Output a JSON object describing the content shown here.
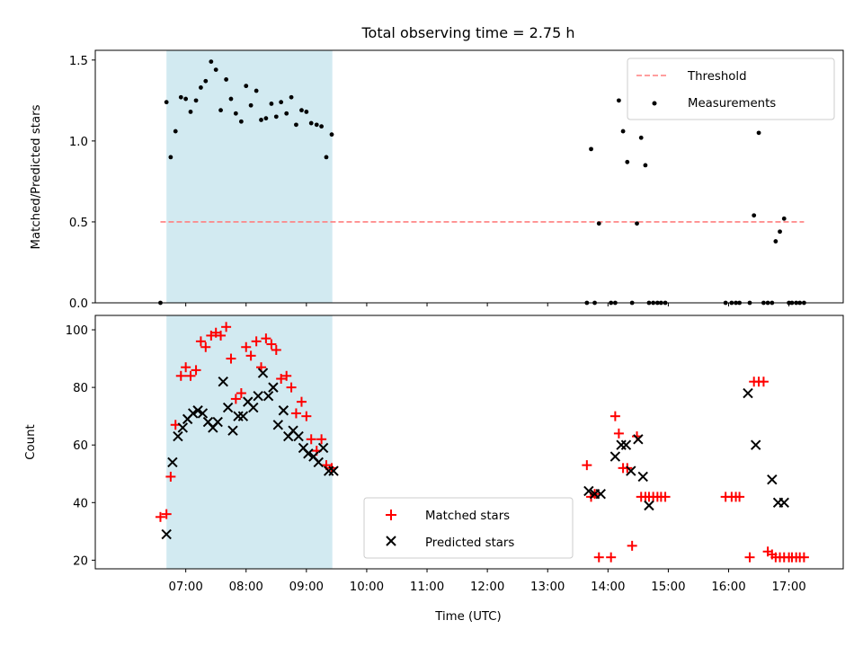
{
  "chart_data": {
    "title": "Total observing time = 2.75 h",
    "xlabel": "Time (UTC)",
    "x_unit": "hour of day (UTC)",
    "xlim": [
      5.5,
      17.9
    ],
    "x_ticks": [
      {
        "value": 7,
        "label": "07:00"
      },
      {
        "value": 8,
        "label": "08:00"
      },
      {
        "value": 9,
        "label": "09:00"
      },
      {
        "value": 10,
        "label": "10:00"
      },
      {
        "value": 11,
        "label": "11:00"
      },
      {
        "value": 12,
        "label": "12:00"
      },
      {
        "value": 13,
        "label": "13:00"
      },
      {
        "value": 14,
        "label": "14:00"
      },
      {
        "value": 15,
        "label": "15:00"
      },
      {
        "value": 16,
        "label": "16:00"
      },
      {
        "value": 17,
        "label": "17:00"
      }
    ],
    "observing_window": {
      "start": 6.68,
      "end": 9.43,
      "color": "#add8e6"
    },
    "panels": [
      {
        "type": "scatter",
        "ylabel": "Matched/Predicted stars",
        "ylim": [
          0,
          1.56
        ],
        "y_ticks": [
          {
            "value": 0,
            "label": "0.0"
          },
          {
            "value": 0.5,
            "label": "0.5"
          },
          {
            "value": 1.0,
            "label": "1.0"
          },
          {
            "value": 1.5,
            "label": "1.5"
          }
        ],
        "legend": {
          "position": "top-right"
        },
        "threshold": {
          "name": "Threshold",
          "value": 0.5,
          "x_range": [
            6.58,
            17.25
          ],
          "color": "#ff7f7f",
          "style": "dashed"
        },
        "series": [
          {
            "name": "Measurements",
            "marker": "dot",
            "color": "#000000",
            "x": [
              6.58,
              6.68,
              6.75,
              6.83,
              6.92,
              7.0,
              7.08,
              7.17,
              7.25,
              7.33,
              7.42,
              7.5,
              7.58,
              7.67,
              7.75,
              7.83,
              7.92,
              8.0,
              8.08,
              8.17,
              8.25,
              8.33,
              8.42,
              8.5,
              8.58,
              8.67,
              8.75,
              8.83,
              8.92,
              9.0,
              9.08,
              9.17,
              9.25,
              9.33,
              9.42,
              13.65,
              13.72,
              13.78,
              13.85,
              14.05,
              14.12,
              14.18,
              14.25,
              14.32,
              14.4,
              14.48,
              14.55,
              14.62,
              14.68,
              14.75,
              14.82,
              14.88,
              14.95,
              15.95,
              16.05,
              16.12,
              16.18,
              16.35,
              16.42,
              16.5,
              16.58,
              16.65,
              16.72,
              16.78,
              16.85,
              16.92,
              17.0,
              17.05,
              17.12,
              17.18,
              17.25
            ],
            "y": [
              0.0,
              1.24,
              0.9,
              1.06,
              1.27,
              1.26,
              1.18,
              1.25,
              1.33,
              1.37,
              1.49,
              1.44,
              1.19,
              1.38,
              1.26,
              1.17,
              1.12,
              1.34,
              1.22,
              1.31,
              1.13,
              1.14,
              1.23,
              1.15,
              1.24,
              1.17,
              1.27,
              1.1,
              1.19,
              1.18,
              1.11,
              1.1,
              1.09,
              0.9,
              1.04,
              0.0,
              0.95,
              0.0,
              0.49,
              0.0,
              0.0,
              1.25,
              1.06,
              0.87,
              0.0,
              0.49,
              1.02,
              0.85,
              0.0,
              0.0,
              0.0,
              0.0,
              0.0,
              0.0,
              0.0,
              0.0,
              0.0,
              0.0,
              0.54,
              1.05,
              0.0,
              0.0,
              0.0,
              0.38,
              0.44,
              0.52,
              0.0,
              0.0,
              0.0,
              0.0,
              0.0
            ]
          }
        ]
      },
      {
        "type": "scatter",
        "ylabel": "Count",
        "ylim": [
          17,
          105
        ],
        "y_ticks": [
          {
            "value": 20,
            "label": "20"
          },
          {
            "value": 40,
            "label": "40"
          },
          {
            "value": 60,
            "label": "60"
          },
          {
            "value": 80,
            "label": "80"
          },
          {
            "value": 100,
            "label": "100"
          }
        ],
        "legend": {
          "position": "lower-center"
        },
        "series": [
          {
            "name": "Matched stars",
            "marker": "plus",
            "color": "#ff0000",
            "x": [
              6.58,
              6.68,
              6.75,
              6.83,
              6.92,
              7.0,
              7.08,
              7.17,
              7.25,
              7.33,
              7.42,
              7.5,
              7.58,
              7.67,
              7.75,
              7.83,
              7.92,
              8.0,
              8.08,
              8.17,
              8.25,
              8.33,
              8.42,
              8.5,
              8.58,
              8.67,
              8.75,
              8.83,
              8.92,
              9.0,
              9.08,
              9.17,
              9.25,
              9.33,
              9.42,
              13.65,
              13.72,
              13.78,
              13.85,
              14.05,
              14.12,
              14.18,
              14.25,
              14.32,
              14.4,
              14.48,
              14.55,
              14.62,
              14.68,
              14.75,
              14.82,
              14.88,
              14.95,
              15.95,
              16.05,
              16.12,
              16.18,
              16.35,
              16.42,
              16.5,
              16.58,
              16.65,
              16.72,
              16.78,
              16.85,
              16.92,
              17.0,
              17.05,
              17.12,
              17.18,
              17.25
            ],
            "y": [
              35,
              36,
              49,
              67,
              84,
              87,
              84,
              86,
              96,
              94,
              98,
              99,
              98,
              101,
              90,
              76,
              78,
              94,
              91,
              96,
              87,
              97,
              95,
              93,
              83,
              84,
              80,
              71,
              75,
              70,
              62,
              58,
              62,
              53,
              52,
              53,
              42,
              43,
              21,
              21,
              70,
              64,
              52,
              52,
              25,
              63,
              42,
              42,
              42,
              42,
              42,
              42,
              42,
              42,
              42,
              42,
              42,
              21,
              82,
              82,
              82,
              23,
              22,
              21,
              21,
              21,
              21,
              21,
              21,
              21,
              21
            ]
          },
          {
            "name": "Predicted stars",
            "marker": "x",
            "color": "#000000",
            "x": [
              6.68,
              6.78,
              6.87,
              6.95,
              7.03,
              7.12,
              7.2,
              7.28,
              7.37,
              7.45,
              7.53,
              7.62,
              7.7,
              7.78,
              7.87,
              7.95,
              8.03,
              8.12,
              8.2,
              8.28,
              8.37,
              8.45,
              8.53,
              8.62,
              8.7,
              8.78,
              8.87,
              8.95,
              9.03,
              9.12,
              9.2,
              9.28,
              9.37,
              9.45,
              13.68,
              13.78,
              13.88,
              14.12,
              14.22,
              14.3,
              14.38,
              14.5,
              14.58,
              14.68,
              16.32,
              16.45,
              16.72,
              16.82,
              16.92
            ],
            "y": [
              29,
              54,
              63,
              66,
              69,
              71,
              72,
              71,
              68,
              66,
              68,
              82,
              73,
              65,
              70,
              70,
              75,
              73,
              77,
              85,
              77,
              80,
              67,
              72,
              63,
              65,
              63,
              59,
              57,
              56,
              54,
              59,
              51,
              51,
              44,
              43,
              43,
              56,
              60,
              60,
              51,
              62,
              49,
              39,
              78,
              60,
              48,
              40,
              40
            ]
          }
        ]
      }
    ]
  }
}
